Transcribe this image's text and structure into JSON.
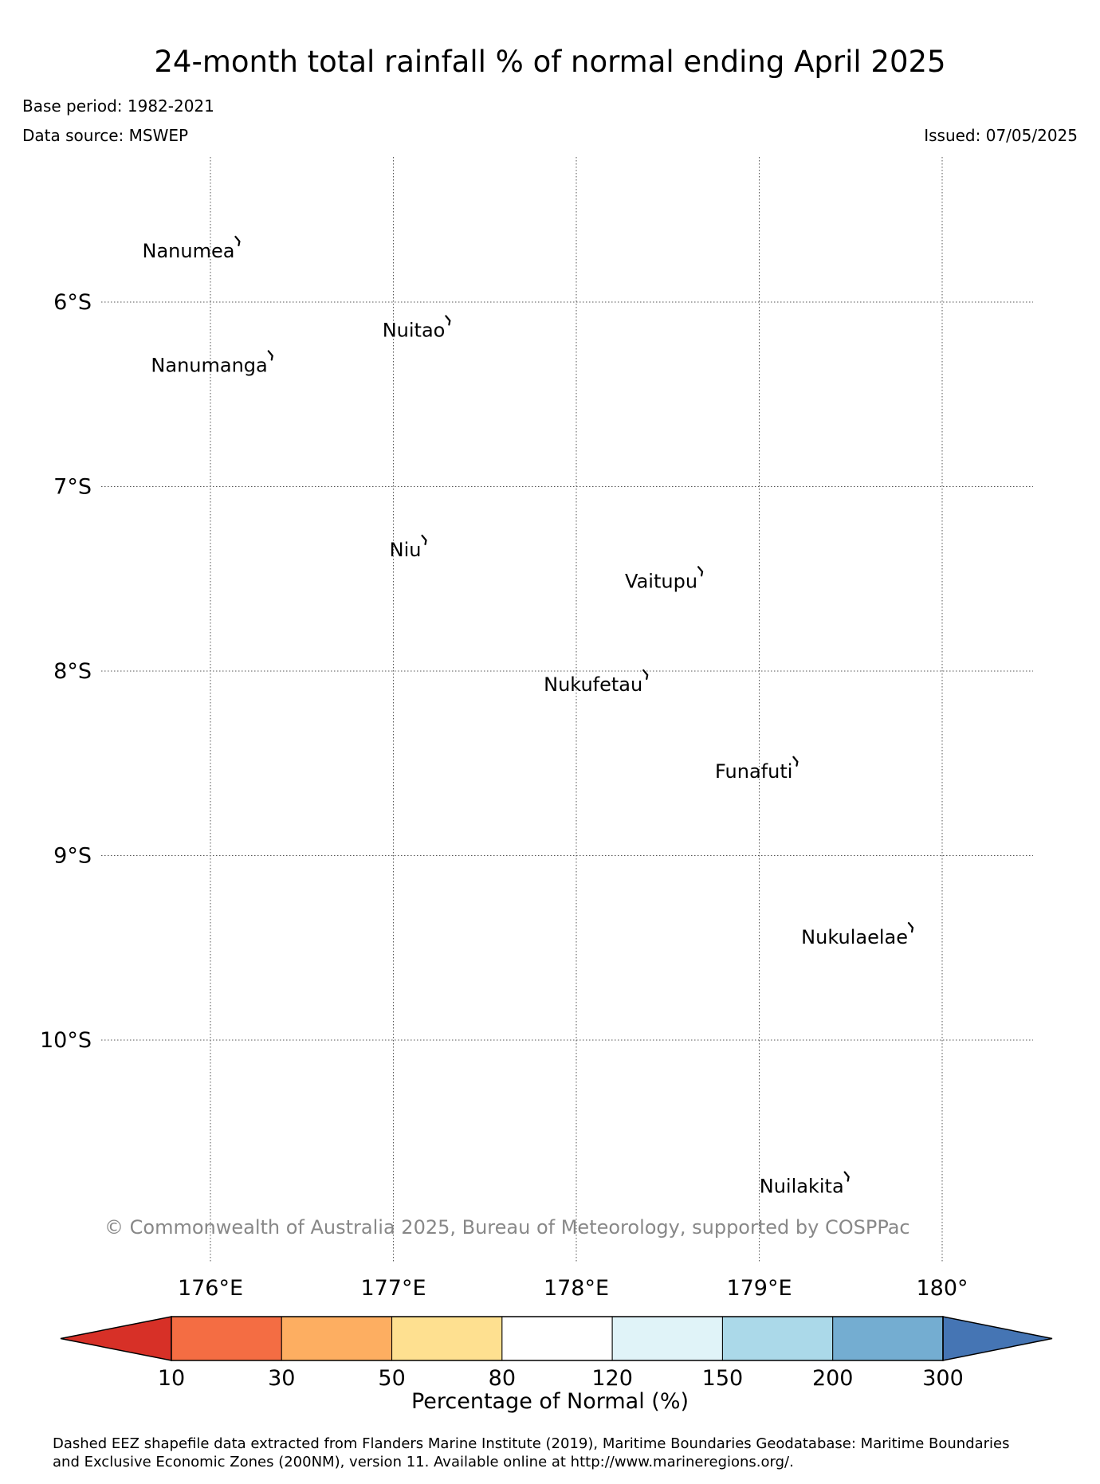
{
  "title": "24-month total rainfall % of normal ending April 2025",
  "base_period": "Base period: 1982-2021",
  "data_source": "Data source: MSWEP",
  "issued": "Issued: 07/05/2025",
  "copyright": "© Commonwealth of Australia 2025, Bureau of Meteorology, supported by COSPPac",
  "map": {
    "lon_range": [
      175.4,
      180.5
    ],
    "lat_range": [
      -11.1,
      -5.22
    ],
    "lon_ticks": [
      {
        "value": 176,
        "label": "176°E"
      },
      {
        "value": 177,
        "label": "177°E"
      },
      {
        "value": 178,
        "label": "178°E"
      },
      {
        "value": 179,
        "label": "179°E"
      },
      {
        "value": 180,
        "label": "180°"
      }
    ],
    "lat_ticks": [
      {
        "value": -6,
        "label": "6°S"
      },
      {
        "value": -7,
        "label": "7°S"
      },
      {
        "value": -8,
        "label": "8°S"
      },
      {
        "value": -9,
        "label": "9°S"
      },
      {
        "value": -10,
        "label": "10°S"
      }
    ],
    "grid": "dotted",
    "islands": [
      {
        "name": "Nanumea",
        "lon": 176.15,
        "lat": -5.68
      },
      {
        "name": "Nuitao",
        "lon": 177.3,
        "lat": -6.11
      },
      {
        "name": "Nanumanga",
        "lon": 176.33,
        "lat": -6.3
      },
      {
        "name": "Niu",
        "lon": 177.17,
        "lat": -7.3
      },
      {
        "name": "Vaitupu",
        "lon": 178.68,
        "lat": -7.47
      },
      {
        "name": "Nukufetau",
        "lon": 178.38,
        "lat": -8.03
      },
      {
        "name": "Funafuti",
        "lon": 179.2,
        "lat": -8.5
      },
      {
        "name": "Nukulaelae",
        "lon": 179.83,
        "lat": -9.4
      },
      {
        "name": "Nuilakita",
        "lon": 179.48,
        "lat": -10.75
      }
    ]
  },
  "colorbar": {
    "label": "Percentage of Normal (%)",
    "tick_labels": [
      "10",
      "30",
      "50",
      "80",
      "120",
      "150",
      "200",
      "300"
    ],
    "under_color": "#d73027",
    "over_color": "#4575b4",
    "bin_colors": [
      "#f46d43",
      "#fdae61",
      "#fee090",
      "#ffffff",
      "#e0f3f8",
      "#abd9e9",
      "#74add1"
    ]
  },
  "footnote": {
    "line1": "Dashed EEZ shapefile data extracted from Flanders Marine Institute (2019), Maritime Boundaries Geodatabase: Maritime Boundaries",
    "line2": "and Exclusive Economic Zones (200NM), version 11. Available online at http://www.marineregions.org/."
  }
}
